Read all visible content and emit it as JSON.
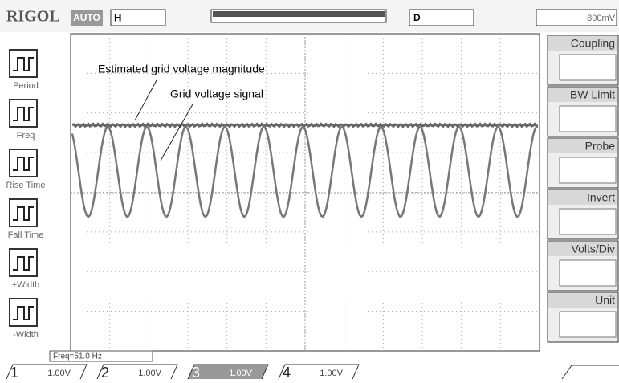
{
  "header": {
    "brand": "RIGOL",
    "mode": "AUTO",
    "h": "H",
    "d": "D",
    "trigger_level": "800mV"
  },
  "annotations": {
    "magnitude": "Estimated grid voltage magnitude",
    "signal": "Grid voltage signal"
  },
  "left_menu": [
    "Period",
    "Freq",
    "Rise Time",
    "Fall Time",
    "+Width",
    "-Width"
  ],
  "right_menu": [
    "Coupling",
    "BW Limit",
    "Probe",
    "Invert",
    "Volts/Div",
    "Unit"
  ],
  "frequency": "Freq=51.0 Hz",
  "channels": [
    {
      "id": "1",
      "scale": "1.00V"
    },
    {
      "id": "2",
      "scale": "1.00V"
    },
    {
      "id": "3",
      "scale": "1.00V"
    },
    {
      "id": "4",
      "scale": "1.00V"
    }
  ]
}
